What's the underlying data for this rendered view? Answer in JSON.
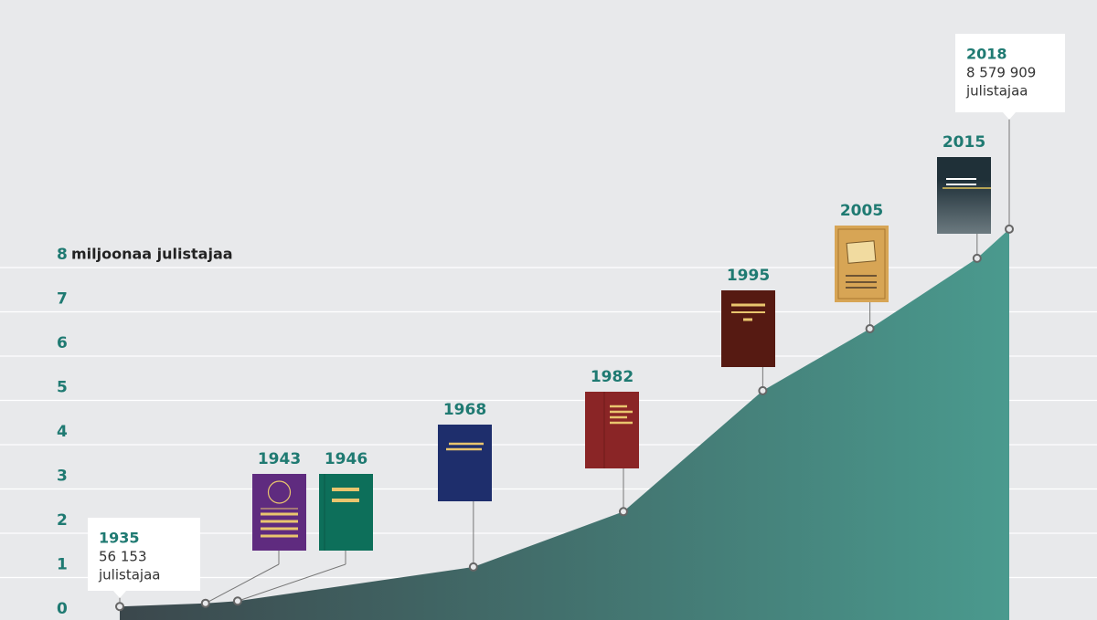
{
  "chart_data": {
    "type": "area",
    "y_label": "miljoonaa julistajaa",
    "x": [
      1935,
      1943,
      1946,
      1968,
      1982,
      1995,
      2005,
      2015,
      2018
    ],
    "values": [
      0.056153,
      0.13,
      0.18,
      0.95,
      2.2,
      4.93,
      6.33,
      7.92,
      8.579909
    ],
    "value_labels": [
      "56 153",
      null,
      null,
      null,
      null,
      null,
      null,
      null,
      "8 579 909"
    ],
    "callout_unit": "julistajaa",
    "xlim": [
      1935,
      2018
    ],
    "ylim": [
      0,
      8
    ],
    "yticks": [
      0,
      1,
      2,
      3,
      4,
      5,
      6,
      7,
      8
    ],
    "grid": true,
    "colors": [
      "#3b474c",
      "#4a9a8e"
    ]
  }
}
